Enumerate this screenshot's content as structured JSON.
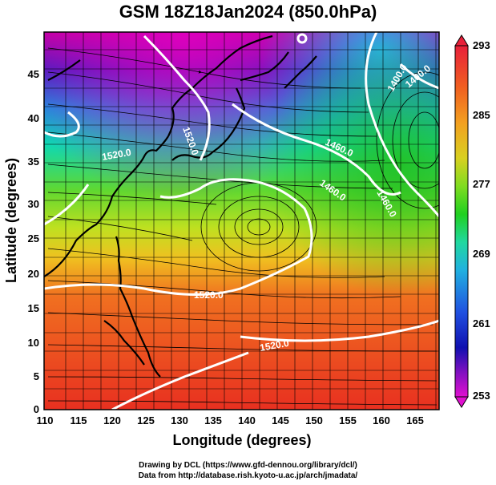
{
  "title": "GSM 18Z18Jan2024 (850.0hPa)",
  "axes": {
    "xlabel": "Longitude (degrees)",
    "ylabel": "Latitude  (degrees)",
    "x_ticks": [
      "110",
      "115",
      "120",
      "125",
      "130",
      "135",
      "140",
      "145",
      "150",
      "155",
      "160",
      "165"
    ],
    "y_ticks": [
      "45",
      "40",
      "35",
      "30",
      "25",
      "20",
      "15",
      "10",
      "5",
      "0"
    ]
  },
  "colorbar": {
    "labels": [
      "293",
      "285",
      "277",
      "269",
      "261",
      "253"
    ],
    "stops": [
      "#e8203a",
      "#f06020",
      "#f3a020",
      "#d8d020",
      "#80dc20",
      "#20d020",
      "#20d8a0",
      "#20b0e0",
      "#2050e0",
      "#1010b0",
      "#8010c0",
      "#e010d0"
    ]
  },
  "contour_labels": [
    "1520.0",
    "1520.0",
    "1520.0",
    "1460.0",
    "1460.0",
    "1400.0",
    "1400.0",
    "1460.0",
    "1520.0"
  ],
  "credits": {
    "line1": "Drawing by DCL (https://www.gfd-dennou.org/library/dcl/)",
    "line2": "Data from http://database.rish.kyoto-u.ac.jp/arch/jmadata/"
  }
}
